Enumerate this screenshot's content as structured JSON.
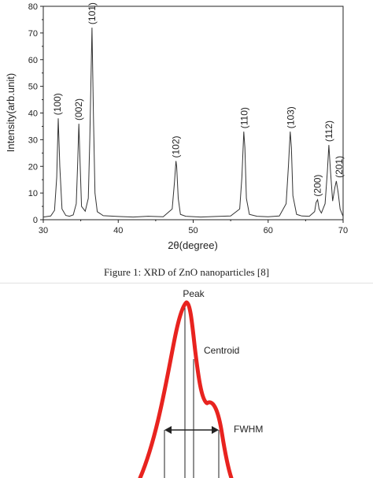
{
  "chart_data": {
    "type": "line",
    "xlabel": "2θ(degree)",
    "ylabel": "Intensity(arb.unit)",
    "xlim": [
      30,
      70
    ],
    "ylim": [
      0,
      80
    ],
    "x_ticks": [
      30,
      40,
      50,
      60,
      70
    ],
    "y_ticks": [
      0,
      10,
      20,
      30,
      40,
      50,
      60,
      70,
      80
    ],
    "grid": false,
    "series": [
      {
        "x": [
          30,
          31,
          31.5,
          31.8,
          32.0,
          32.2,
          32.5,
          33,
          33.5,
          34,
          34.4,
          34.6,
          34.75,
          34.9,
          35.1,
          35.6,
          36.0,
          36.2,
          36.5,
          36.7,
          36.9,
          37.2,
          38,
          40,
          42,
          44,
          46,
          47.2,
          47.5,
          47.7,
          47.8,
          48.0,
          48.3,
          49,
          51,
          53,
          55,
          56.2,
          56.5,
          56.75,
          56.9,
          57.1,
          57.5,
          58.5,
          60,
          61.5,
          62.4,
          62.7,
          62.95,
          63.1,
          63.3,
          63.8,
          64.5,
          65.5,
          66.2,
          66.4,
          66.6,
          66.8,
          67.1,
          67.6,
          67.9,
          68.1,
          68.3,
          68.6,
          68.9,
          69.1,
          69.35,
          69.6,
          70
        ],
        "values": [
          1.0,
          1.4,
          3.5,
          16,
          38,
          20,
          4,
          1.6,
          1.3,
          1.8,
          6,
          22,
          36,
          22,
          5,
          3.2,
          8,
          30,
          72,
          38,
          10,
          3,
          1.5,
          1.2,
          1.0,
          1.3,
          1.1,
          4,
          14,
          22,
          20,
          8,
          2,
          1.3,
          1.0,
          1.2,
          1.4,
          4,
          16,
          33,
          27,
          8,
          2,
          1.3,
          1.1,
          1.4,
          6,
          20,
          33,
          27,
          9,
          2,
          1.4,
          1.3,
          3,
          6.5,
          7.5,
          4,
          2.5,
          6,
          18,
          28,
          19,
          7,
          12,
          14.5,
          10,
          4,
          1.2
        ]
      }
    ],
    "annotations": [
      {
        "label": "(100)",
        "x": 31.9,
        "y": 38
      },
      {
        "label": "(002)",
        "x": 34.75,
        "y": 36
      },
      {
        "label": "(101)",
        "x": 36.5,
        "y": 72
      },
      {
        "label": "(102)",
        "x": 47.7,
        "y": 22
      },
      {
        "label": "(110)",
        "x": 56.8,
        "y": 33
      },
      {
        "label": "(103)",
        "x": 63.0,
        "y": 33
      },
      {
        "label": "(200)",
        "x": 66.6,
        "y": 7.5
      },
      {
        "label": "(112)",
        "x": 68.1,
        "y": 28
      },
      {
        "label": "(201)",
        "x": 69.5,
        "y": 14.5
      }
    ]
  },
  "caption": "Figure 1: XRD of ZnO nanoparticles [8]",
  "diagram": {
    "peak_label": "Peak",
    "centroid_label": "Centroid",
    "fwhm_label": "FWHM",
    "curve_color": "#e8231f"
  }
}
